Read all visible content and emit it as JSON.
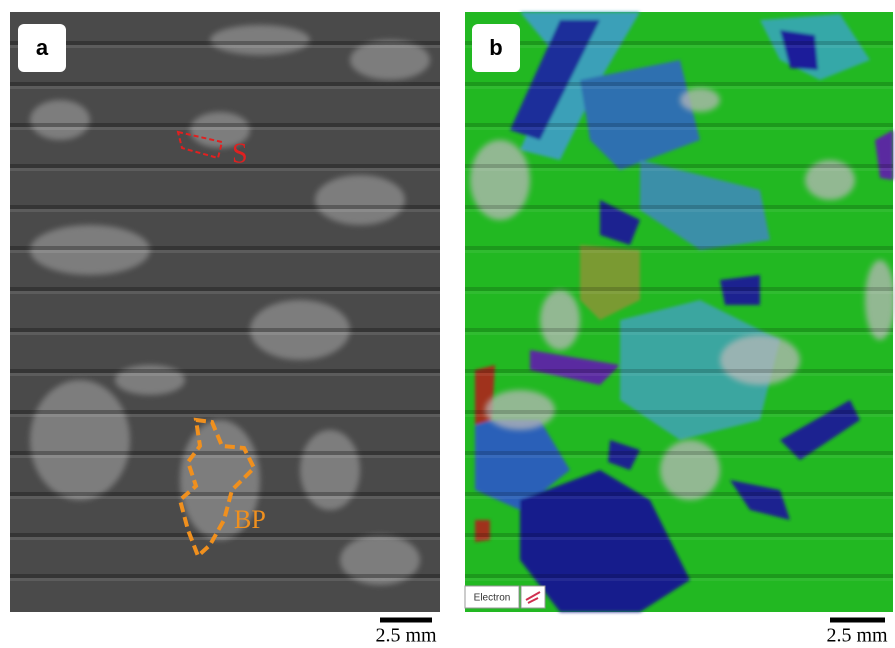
{
  "panels": [
    {
      "label": "a",
      "annotations": [
        "S",
        "BP"
      ],
      "scale_bar": "2.5 mm"
    },
    {
      "label": "b",
      "legend": "Electron",
      "scale_bar": "2.5 mm"
    }
  ]
}
